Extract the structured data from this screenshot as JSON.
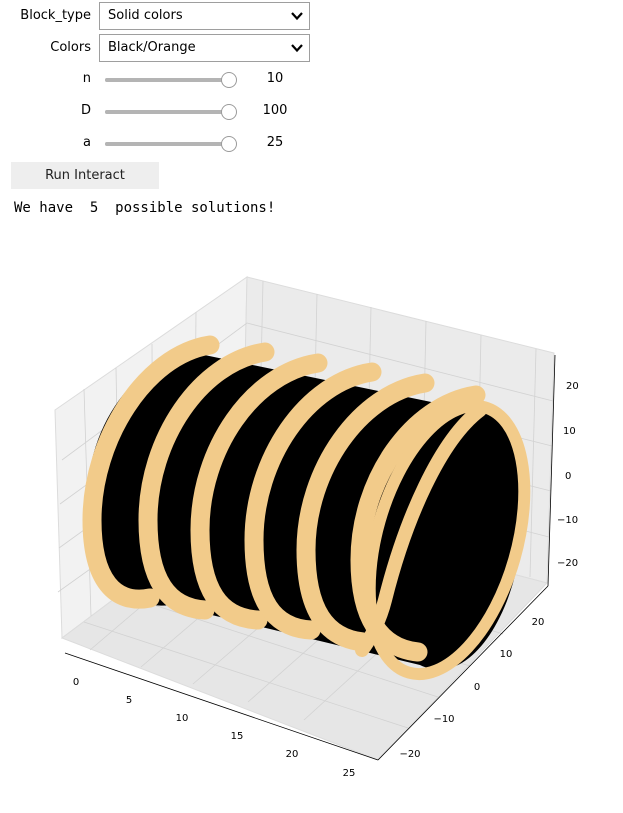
{
  "controls": {
    "block_type": {
      "label": "Block_type",
      "value": "Solid colors"
    },
    "colors": {
      "label": "Colors",
      "value": "Black/Orange"
    },
    "sliders": [
      {
        "name": "n",
        "value": "10",
        "fraction": 1.0
      },
      {
        "name": "D",
        "value": "100",
        "fraction": 1.0
      },
      {
        "name": "a",
        "value": "25",
        "fraction": 1.0
      }
    ],
    "run_button": "Run Interact"
  },
  "output": {
    "text": "We have  5  possible solutions!"
  },
  "plot": {
    "type": "3d-surface",
    "colors": {
      "dark": "#000000",
      "light": "#f2cb8a"
    },
    "x_ticks": [
      "0",
      "5",
      "10",
      "15",
      "20",
      "25"
    ],
    "y_ticks": [
      "20",
      "10",
      "0",
      "−10",
      "−20"
    ],
    "z_ticks": [
      "20",
      "10",
      "0",
      "−10",
      "−20"
    ]
  }
}
